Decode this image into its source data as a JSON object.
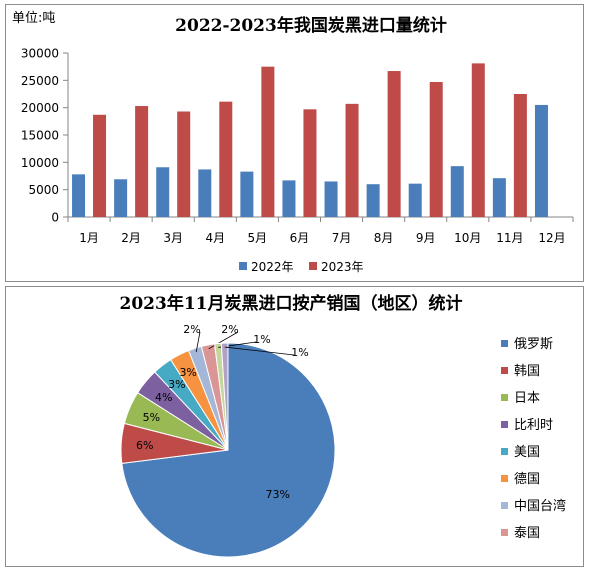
{
  "chart_data": [
    {
      "type": "bar",
      "title": "2022-2023年我国炭黑进口量统计",
      "unit_label": "单位:吨",
      "categories": [
        "1月",
        "2月",
        "3月",
        "4月",
        "5月",
        "6月",
        "7月",
        "8月",
        "9月",
        "10月",
        "11月",
        "12月"
      ],
      "series": [
        {
          "name": "2022年",
          "color": "#4a7ebb",
          "values": [
            7800,
            6900,
            9100,
            8700,
            8300,
            6700,
            6500,
            6000,
            6100,
            9300,
            7100,
            20500
          ]
        },
        {
          "name": "2023年",
          "color": "#be4b48",
          "values": [
            18700,
            20300,
            19300,
            21100,
            27500,
            19700,
            20700,
            26700,
            24700,
            28100,
            22500,
            null
          ]
        }
      ],
      "ylim": [
        0,
        30000
      ],
      "yticks": [
        0,
        5000,
        10000,
        15000,
        20000,
        25000,
        30000
      ],
      "grid": false,
      "legend": "bottom"
    },
    {
      "type": "pie",
      "title": "2023年11月炭黑进口按产销国（地区）统计",
      "slices": [
        {
          "label": "俄罗斯",
          "value": 73,
          "display": "73%",
          "color": "#4a7ebb"
        },
        {
          "label": "韩国",
          "value": 6,
          "display": "6%",
          "color": "#be4b48"
        },
        {
          "label": "日本",
          "value": 5,
          "display": "5%",
          "color": "#98b954"
        },
        {
          "label": "比利时",
          "value": 4,
          "display": "4%",
          "color": "#7d60a0"
        },
        {
          "label": "美国",
          "value": 3,
          "display": "3%",
          "color": "#46aac5"
        },
        {
          "label": "德国",
          "value": 3,
          "display": "3%",
          "color": "#f69240"
        },
        {
          "label": "中国台湾",
          "value": 2,
          "display": "2%",
          "color": "#a5b7d9"
        },
        {
          "label": "泰国",
          "value": 2,
          "display": "2%",
          "color": "#d99694"
        },
        {
          "label": "",
          "value": 1,
          "display": "1%",
          "color": "#c3d69b"
        },
        {
          "label": "",
          "value": 1,
          "display": "1%",
          "color": "#b3a2c7"
        }
      ],
      "legend": "right"
    }
  ]
}
